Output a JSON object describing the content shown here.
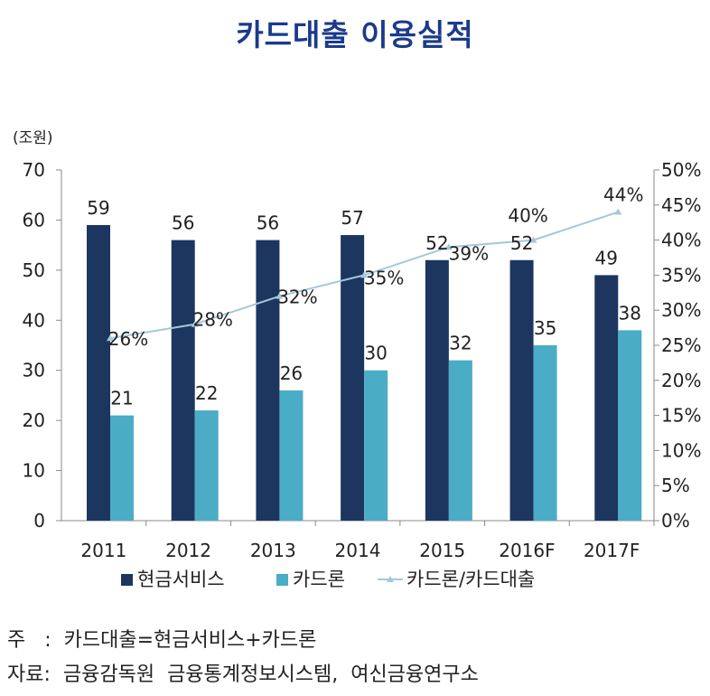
{
  "title": "카드대출  이용실적",
  "notes": {
    "note1": "주   :  카드대출=현금서비스+카드론",
    "note2": "자료:  금융감독원  금융통계정보시스템,  여신금융연구소"
  },
  "chart_data": {
    "type": "bar",
    "categories": [
      "2011",
      "2012",
      "2013",
      "2014",
      "2015",
      "2016F",
      "2017F"
    ],
    "ylabel_left": "(조원)",
    "ylim_left": [
      0,
      70
    ],
    "yticks_left": [
      "0",
      "10",
      "20",
      "30",
      "40",
      "50",
      "60",
      "70"
    ],
    "ylim_right": [
      0,
      50
    ],
    "yticks_right": [
      "0%",
      "5%",
      "10%",
      "15%",
      "20%",
      "25%",
      "30%",
      "35%",
      "40%",
      "45%",
      "50%"
    ],
    "grid": false,
    "legend_position": "bottom",
    "series": [
      {
        "name": "현금서비스",
        "type": "bar",
        "axis": "left",
        "color": "#1c3660",
        "values": [
          59,
          56,
          56,
          57,
          52,
          52,
          49
        ],
        "labels": [
          "59",
          "56",
          "56",
          "57",
          "52",
          "52",
          "49"
        ]
      },
      {
        "name": "카드론",
        "type": "bar",
        "axis": "left",
        "color": "#4bacc6",
        "values": [
          21,
          22,
          26,
          30,
          32,
          35,
          38
        ],
        "labels": [
          "21",
          "22",
          "26",
          "30",
          "32",
          "35",
          "38"
        ]
      },
      {
        "name": "카드론/카드대출",
        "type": "line",
        "axis": "right",
        "color": "#a5c8d9",
        "values": [
          26,
          28,
          32,
          35,
          39,
          40,
          44
        ],
        "labels": [
          "26%",
          "28%",
          "32%",
          "35%",
          "39%",
          "40%",
          "44%"
        ]
      }
    ]
  }
}
